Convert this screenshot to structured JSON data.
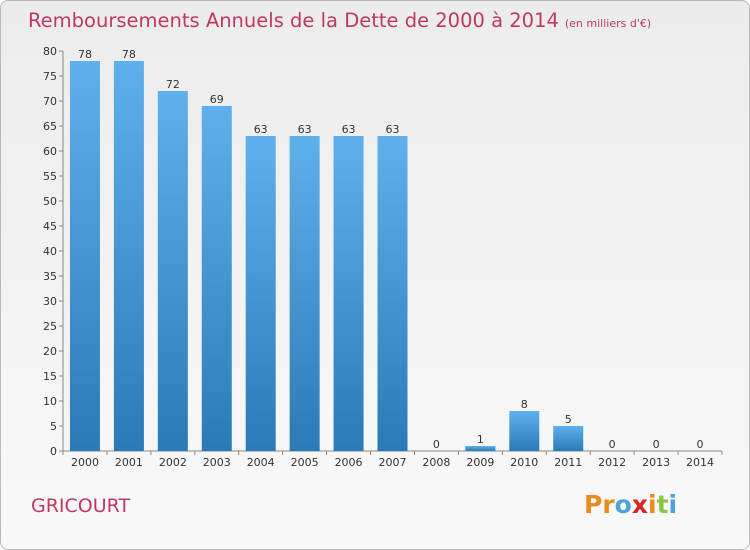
{
  "header": {
    "title": "Remboursements Annuels de la Dette de 2000 à 2014",
    "unit": "(en milliers d'€)"
  },
  "footer": {
    "commune": "GRICOURT",
    "logo": "Proxiti",
    "logo_colors": [
      "#e88b1a",
      "#e88b1a",
      "#4da3d8",
      "#d9242a",
      "#e88b1a",
      "#8cc63f",
      "#4da3d8"
    ]
  },
  "chart_data": {
    "type": "bar",
    "title": "Remboursements Annuels de la Dette de 2000 à 2014",
    "subtitle": "(en milliers d'€)",
    "xlabel": "",
    "ylabel": "",
    "categories": [
      "2000",
      "2001",
      "2002",
      "2003",
      "2004",
      "2005",
      "2006",
      "2007",
      "2008",
      "2009",
      "2010",
      "2011",
      "2012",
      "2013",
      "2014"
    ],
    "values": [
      78,
      78,
      72,
      69,
      63,
      63,
      63,
      63,
      0,
      1,
      8,
      5,
      0,
      0,
      0
    ],
    "ylim": [
      0,
      80
    ],
    "yticks": [
      0,
      5,
      10,
      15,
      20,
      25,
      30,
      35,
      40,
      45,
      50,
      55,
      60,
      65,
      70,
      75,
      80
    ],
    "grid": false,
    "bar_color": "#3d8fd1"
  }
}
